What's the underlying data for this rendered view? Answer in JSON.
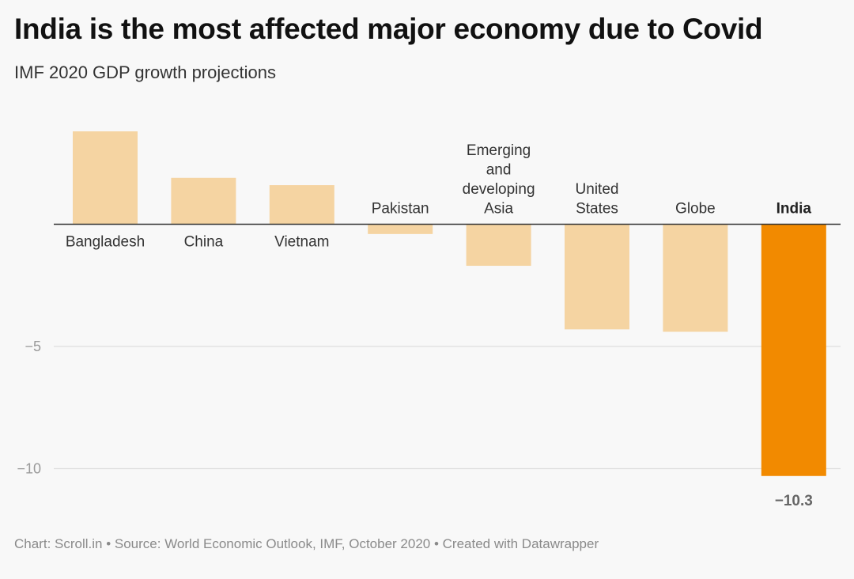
{
  "header": {
    "title": "India is the most affected major economy due to Covid",
    "subtitle": "IMF 2020 GDP growth projections"
  },
  "footer": {
    "text": "Chart: Scroll.in • Source: World Economic Outlook, IMF, October 2020 • Created with Datawrapper"
  },
  "colors": {
    "default_bar": "#f5d4a2",
    "highlight_bar": "#f28a00",
    "baseline": "#333333",
    "gridline": "#dddddd",
    "background": "#f8f8f8"
  },
  "chart_data": {
    "type": "bar",
    "title": "India is the most affected major economy due to Covid",
    "subtitle": "IMF 2020 GDP growth projections",
    "xlabel": "",
    "ylabel": "",
    "categories": [
      "Bangladesh",
      "China",
      "Vietnam",
      "Pakistan",
      "Emerging and developing Asia",
      "United States",
      "Globe",
      "India"
    ],
    "category_label_lines": [
      [
        "Bangladesh"
      ],
      [
        "China"
      ],
      [
        "Vietnam"
      ],
      [
        "Pakistan"
      ],
      [
        "Emerging",
        "and",
        "developing",
        "Asia"
      ],
      [
        "United",
        "States"
      ],
      [
        "Globe"
      ],
      [
        "India"
      ]
    ],
    "values": [
      3.8,
      1.9,
      1.6,
      -0.4,
      -1.7,
      -4.3,
      -4.4,
      -10.3
    ],
    "highlight": [
      "India"
    ],
    "data_labels": [
      {
        "category": "India",
        "text": "−10.3"
      }
    ],
    "yticks": [
      {
        "value": -5,
        "label": "−5"
      },
      {
        "value": -10,
        "label": "−10"
      }
    ],
    "ylim": [
      -10.3,
      3.8
    ],
    "grid": true,
    "legend": "none"
  }
}
